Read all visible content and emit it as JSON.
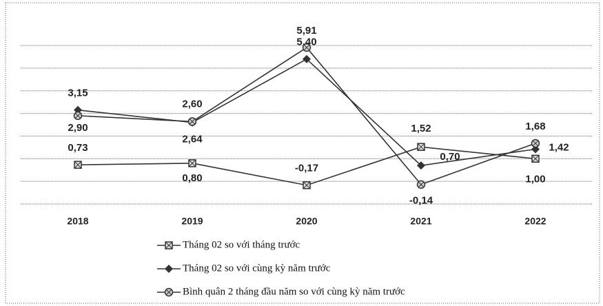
{
  "chart_data": {
    "type": "line",
    "categories": [
      "2018",
      "2019",
      "2020",
      "2021",
      "2022"
    ],
    "series": [
      {
        "name": "Tháng 02 so với tháng trước",
        "color": "#333333",
        "marker": "square",
        "values": [
          0.73,
          0.8,
          -0.17,
          1.52,
          1.0
        ],
        "value_labels": [
          "0,73",
          "0,80",
          "-0,17",
          "1,52",
          "1,00"
        ]
      },
      {
        "name": "Tháng 02 so với cùng kỳ năm trước",
        "color": "#333333",
        "marker": "diamond",
        "values": [
          3.15,
          2.6,
          5.4,
          0.7,
          1.42
        ],
        "value_labels": [
          "3,15",
          "2,60",
          "5,40",
          "0,70",
          "1,42"
        ]
      },
      {
        "name": "Bình quân 2 tháng đầu năm so với cùng kỳ năm trước",
        "color": "#333333",
        "marker": "circle",
        "values": [
          2.9,
          2.64,
          5.91,
          -0.14,
          1.68
        ],
        "value_labels": [
          "2,90",
          "2,64",
          "5,91",
          "-0,14",
          "1,68"
        ]
      }
    ],
    "ylim": [
      -1,
      6
    ],
    "yticks": [
      -1,
      0,
      1,
      2,
      3,
      4,
      5,
      6
    ],
    "grid": true
  }
}
